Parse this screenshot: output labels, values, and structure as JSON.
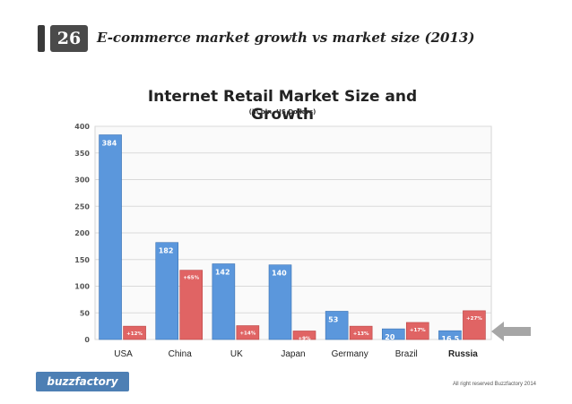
{
  "slide": {
    "number": "26",
    "title": "E-commerce market growth vs market size (2013)"
  },
  "footer": {
    "logo_text": "buzzfactory",
    "copyright": "All right reserved Buzzfactory 2014"
  },
  "colors": {
    "size_bar": "#5b97dc",
    "growth_bar": "#e06464",
    "arrow": "#a6a6a6"
  },
  "chart_data": {
    "type": "bar",
    "title": "Internet Retail Market Size and Growth",
    "subtitle": "(in bln. US Dollars)",
    "categories": [
      "USA",
      "China",
      "UK",
      "Japan",
      "Germany",
      "Brazil",
      "Russia"
    ],
    "highlighted_category": "Russia",
    "ylim": [
      0,
      400
    ],
    "yticks": [
      0,
      50,
      100,
      150,
      200,
      250,
      300,
      350,
      400
    ],
    "grid": true,
    "series": [
      {
        "values": [
          384,
          182,
          142,
          140,
          53,
          20,
          16.5
        ],
        "labels": [
          "384",
          "182",
          "142",
          "140",
          "53",
          "20",
          "16.5"
        ]
      },
      {
        "values": [
          25,
          130,
          26,
          16,
          25,
          32,
          54
        ],
        "labels": [
          "+12%",
          "+65%",
          "+14%",
          "+9%",
          "+13%",
          "+17%",
          "+27%"
        ]
      }
    ]
  }
}
